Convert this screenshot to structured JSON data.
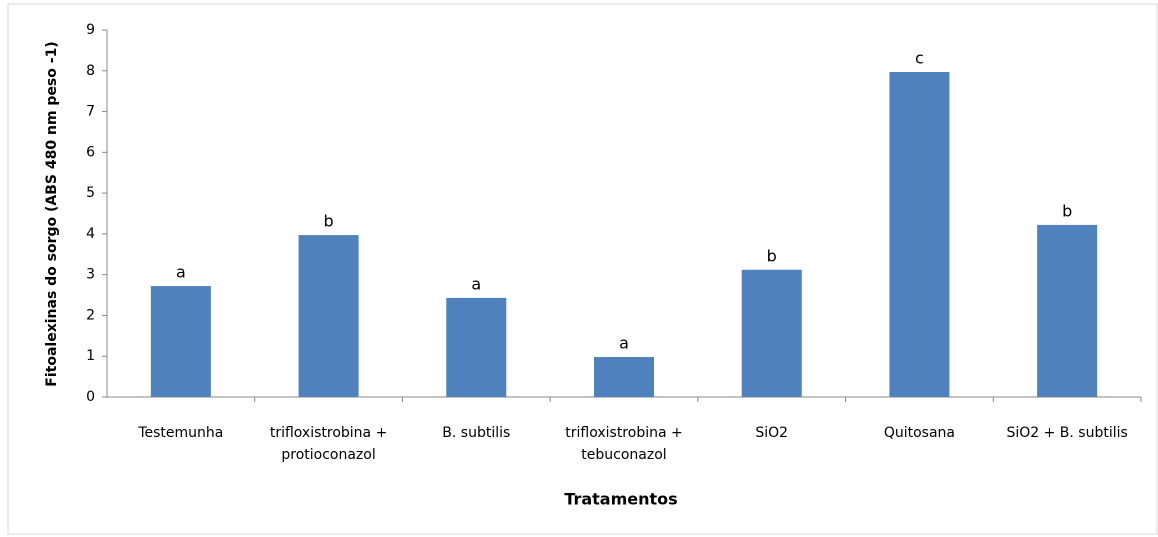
{
  "chart_data": {
    "type": "bar",
    "categories": [
      "Testemunha",
      "trifloxistrobina +\nprotioconazol",
      "B. subtilis",
      "trifloxistrobina +\ntebuconazol",
      "SiO2",
      "Quitosana",
      "SiO2 + B. subtilis"
    ],
    "values": [
      2.72,
      3.97,
      2.43,
      0.98,
      3.12,
      7.97,
      4.22
    ],
    "annotations": [
      "a",
      "b",
      "a",
      "a",
      "b",
      "c",
      "b"
    ],
    "color": "#4f81bd",
    "ylim": [
      0,
      9
    ],
    "yticks": [
      0,
      1,
      2,
      3,
      4,
      5,
      6,
      7,
      8,
      9
    ],
    "ylabel": "Fitoalexinas  do sorgo (ABS 480 nm peso -1)",
    "xlabel": "Tratamentos",
    "grid": false
  }
}
